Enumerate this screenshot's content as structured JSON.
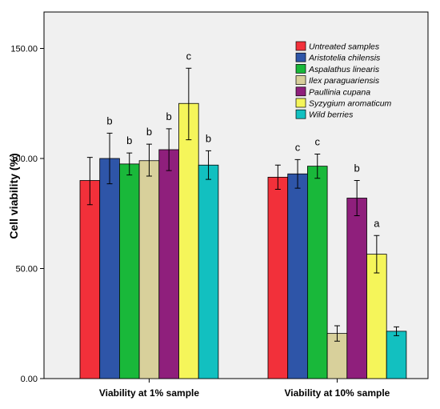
{
  "chart_data": {
    "type": "bar",
    "title": "",
    "xlabel": "",
    "ylabel": "Cell viability (%)",
    "ylim": [
      0,
      170
    ],
    "yticks": [
      "0.00",
      "50.00",
      "100.00",
      "150.00"
    ],
    "ytick_values": [
      0,
      50,
      100,
      150
    ],
    "grid": false,
    "legend_position": "top-right",
    "categories": [
      "Viability at 1% sample",
      "Viability at 10% sample"
    ],
    "series": [
      {
        "name": "Untreated samples",
        "color": "#f2303a",
        "values": [
          90,
          91.5
        ],
        "err_low": [
          79,
          86
        ],
        "err_high": [
          100.5,
          97
        ],
        "labels": [
          "",
          ""
        ]
      },
      {
        "name": "Aristotelia chilensis",
        "color": "#2e55a8",
        "values": [
          100,
          93
        ],
        "err_low": [
          88.5,
          86.5
        ],
        "err_high": [
          111.5,
          99.5
        ],
        "labels": [
          "b",
          "c"
        ]
      },
      {
        "name": "Aspalathus linearis",
        "color": "#19b83a",
        "values": [
          97.5,
          96.5
        ],
        "err_low": [
          92.5,
          91
        ],
        "err_high": [
          102.5,
          102
        ],
        "labels": [
          "b",
          "c"
        ]
      },
      {
        "name": "Ilex paraguariensis",
        "color": "#d8d09b",
        "values": [
          99,
          20.5
        ],
        "err_low": [
          92,
          17
        ],
        "err_high": [
          106.5,
          24
        ],
        "labels": [
          "b",
          ""
        ]
      },
      {
        "name": "Paullinia cupana",
        "color": "#8f1f7c",
        "values": [
          104,
          82
        ],
        "err_low": [
          94.5,
          74
        ],
        "err_high": [
          113.5,
          90
        ],
        "labels": [
          "b",
          "b"
        ]
      },
      {
        "name": "Syzygium aromaticum",
        "color": "#f5f55a",
        "values": [
          125,
          56.5
        ],
        "err_low": [
          108.5,
          48
        ],
        "err_high": [
          141,
          65
        ],
        "labels": [
          "c",
          "a"
        ]
      },
      {
        "name": "Wild berries",
        "color": "#12c0c0",
        "values": [
          97,
          21.5
        ],
        "err_low": [
          90.5,
          19.5
        ],
        "err_high": [
          103.5,
          23.5
        ],
        "labels": [
          "b",
          ""
        ]
      }
    ]
  }
}
